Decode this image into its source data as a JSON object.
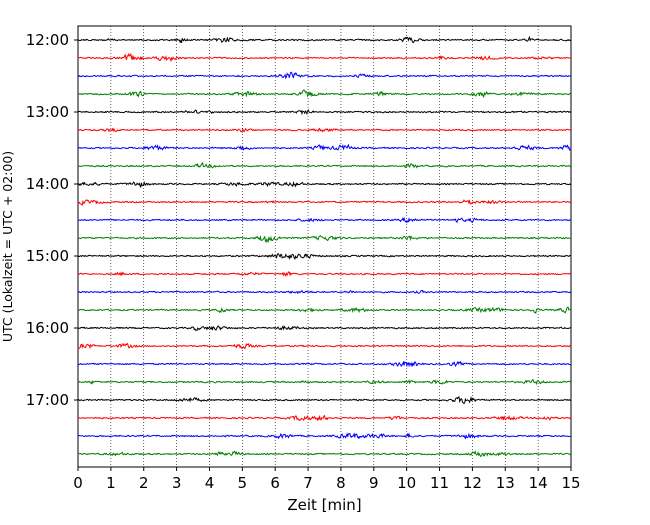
{
  "chart_data": {
    "type": "line",
    "subtype": "helicorder",
    "title": "",
    "xlabel": "Zeit  [min]",
    "ylabel": "UTC (Lokalzeit = UTC + 02:00)",
    "xlim": [
      0,
      15
    ],
    "x_ticks": [
      "0",
      "1",
      "2",
      "3",
      "4",
      "5",
      "6",
      "7",
      "8",
      "9",
      "10",
      "11",
      "12",
      "13",
      "14",
      "15"
    ],
    "y_ticks": [
      {
        "label": "12:00",
        "trace_index": 0
      },
      {
        "label": "13:00",
        "trace_index": 4
      },
      {
        "label": "14:00",
        "trace_index": 8
      },
      {
        "label": "15:00",
        "trace_index": 12
      },
      {
        "label": "16:00",
        "trace_index": 16
      },
      {
        "label": "17:00",
        "trace_index": 20
      }
    ],
    "trace_interval_minutes": 15,
    "trace_count": 24,
    "trace_colors": [
      "#000000",
      "#ff0000",
      "#0000ff",
      "#008000"
    ],
    "grid": {
      "x": true,
      "y": false,
      "style": "dotted"
    },
    "legend": "none"
  }
}
